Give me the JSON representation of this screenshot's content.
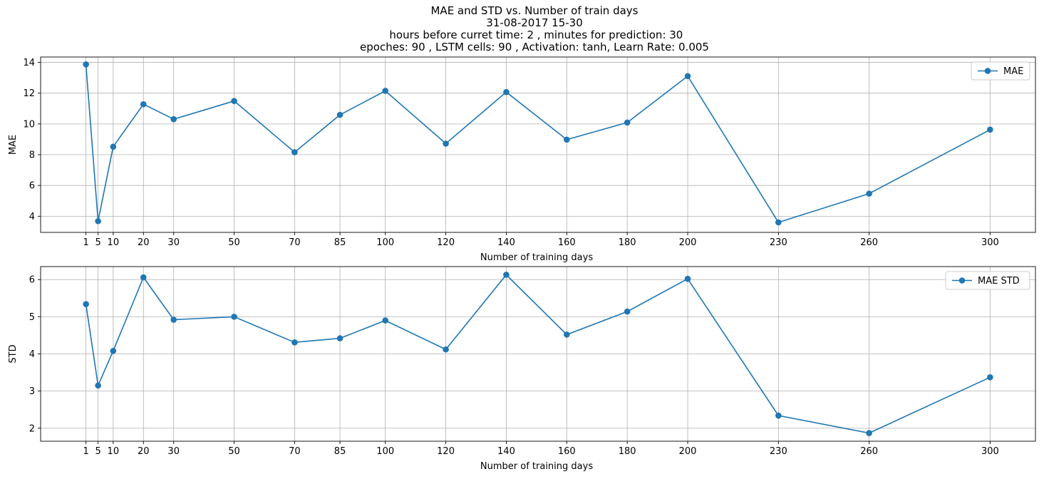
{
  "title_lines": [
    "MAE and STD vs. Number of train days",
    "31-08-2017 15-30",
    " hours before curret time: 2 , minutes for prediction: 30",
    "epoches: 90 , LSTM cells: 90 , Activation: tanh, Learn Rate: 0.005"
  ],
  "colors": {
    "series": "#1f77b4",
    "grid": "#b0b0b0",
    "axes": "#000000"
  },
  "chart_data": [
    {
      "type": "line",
      "xlabel": "Number of training days",
      "ylabel": "MAE",
      "x": [
        1,
        5,
        10,
        20,
        30,
        50,
        70,
        85,
        100,
        120,
        140,
        160,
        180,
        200,
        230,
        260,
        300
      ],
      "series": [
        {
          "name": "MAE",
          "values": [
            13.87,
            3.68,
            8.52,
            11.28,
            10.31,
            11.49,
            8.16,
            10.59,
            12.15,
            8.72,
            12.07,
            8.98,
            10.09,
            13.11,
            3.6,
            5.47,
            9.63
          ]
        }
      ],
      "xticks": [
        1,
        5,
        10,
        20,
        30,
        50,
        70,
        85,
        100,
        120,
        140,
        160,
        180,
        200,
        230,
        260,
        300
      ],
      "yticks": [
        4,
        6,
        8,
        10,
        12,
        14
      ],
      "xlim": [
        -14,
        315
      ],
      "ylim": [
        2.95,
        14.35
      ],
      "grid": true,
      "legend": "upper right"
    },
    {
      "type": "line",
      "xlabel": "Number of training days",
      "ylabel": "STD",
      "x": [
        1,
        5,
        10,
        20,
        30,
        50,
        70,
        85,
        100,
        120,
        140,
        160,
        180,
        200,
        230,
        260,
        300
      ],
      "series": [
        {
          "name": "MAE STD",
          "values": [
            5.34,
            3.15,
            4.08,
            6.06,
            4.92,
            5.0,
            4.31,
            4.42,
            4.9,
            4.12,
            6.13,
            4.52,
            5.14,
            6.02,
            2.34,
            1.87,
            3.37
          ]
        }
      ],
      "xticks": [
        1,
        5,
        10,
        20,
        30,
        50,
        70,
        85,
        100,
        120,
        140,
        160,
        180,
        200,
        230,
        260,
        300
      ],
      "yticks": [
        2,
        3,
        4,
        5,
        6
      ],
      "xlim": [
        -14,
        315
      ],
      "ylim": [
        1.65,
        6.35
      ],
      "grid": true,
      "legend": "upper right"
    }
  ]
}
